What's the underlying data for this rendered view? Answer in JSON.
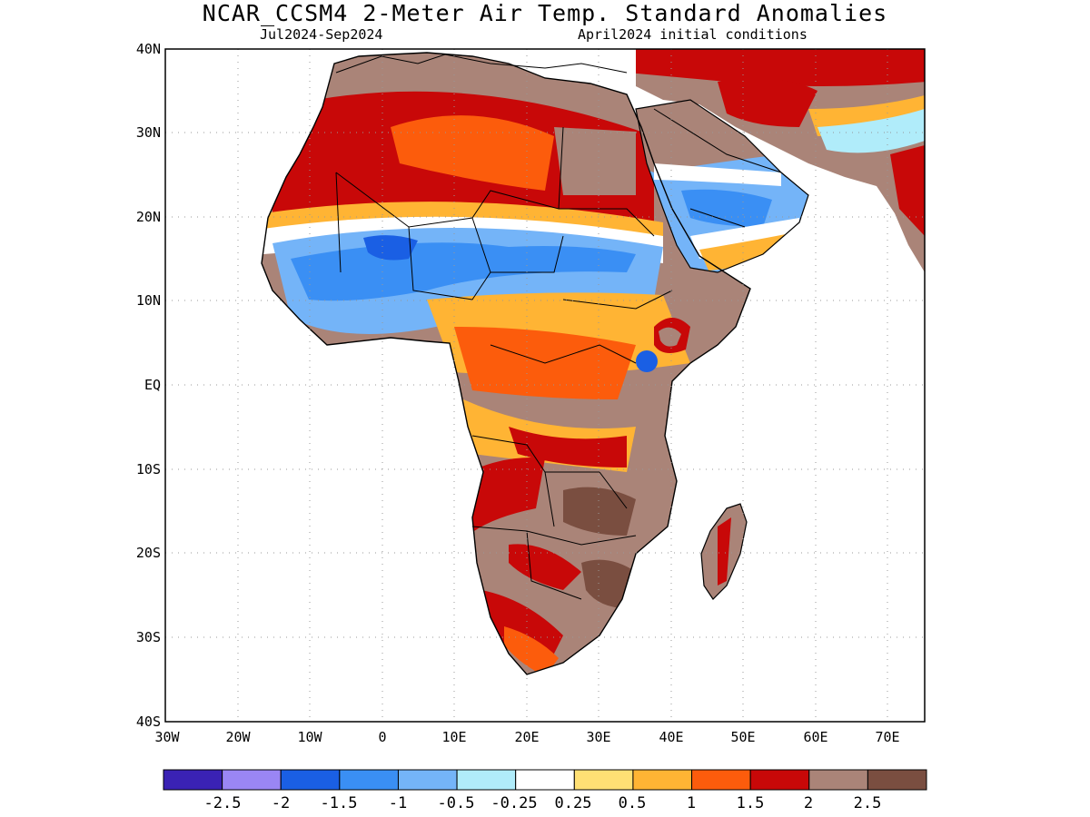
{
  "title": "NCAR_CCSM4 2-Meter Air Temp. Standard Anomalies",
  "subtitle_left": "Jul2024-Sep2024",
  "subtitle_right": "April2024 initial conditions",
  "lat_labels": [
    "40N",
    "30N",
    "20N",
    "10N",
    "EQ",
    "10S",
    "20S",
    "30S",
    "40S"
  ],
  "lon_labels": [
    "30W",
    "20W",
    "10W",
    "0",
    "10E",
    "20E",
    "30E",
    "40E",
    "50E",
    "60E",
    "70E"
  ],
  "colorbar": {
    "colors": [
      "#3a22b4",
      "#9a86f4",
      "#1a5fe4",
      "#3a8ff4",
      "#74b4f8",
      "#b0ecfa",
      "#ffffff",
      "#ffe074",
      "#ffb434",
      "#fc5c0c",
      "#c80808",
      "#aa8478",
      "#7a4e40"
    ],
    "labels": [
      "-2.5",
      "-2",
      "-1.5",
      "-1",
      "-0.5",
      "-0.25",
      "0.25",
      "0.5",
      "1",
      "1.5",
      "2",
      "2.5"
    ]
  },
  "colors": {
    "ocean": "#ffffff",
    "land_white": "#ffffff",
    "coast": "#000000"
  }
}
